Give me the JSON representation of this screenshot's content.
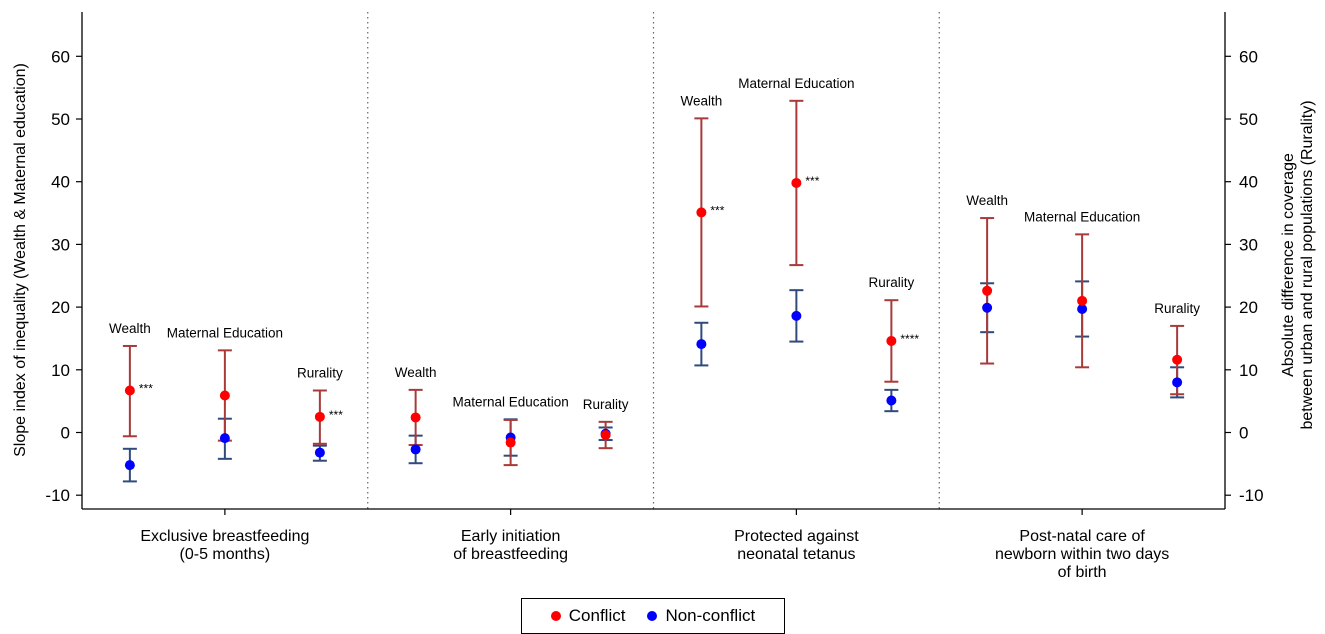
{
  "chart_data": {
    "type": "scatter",
    "y_left_label": "Slope index of inequality (Wealth & Maternal education)",
    "y_right_label_line1": "Absolute difference in coverage",
    "y_right_label_line2": "between urban and rural populations (Rurality)",
    "ylim": [
      -12,
      67
    ],
    "yticks": [
      -10,
      0,
      10,
      20,
      30,
      40,
      50,
      60
    ],
    "grid": false,
    "legend_placement": "bottom-center",
    "colors": {
      "conflict_point": "#ff0000",
      "conflict_bar": "#a83a3a",
      "nonconflict_point": "#0000ff",
      "nonconflict_bar": "#2f4b7c"
    },
    "legend": [
      {
        "key": "conflict",
        "label": "Conflict"
      },
      {
        "key": "nonconflict",
        "label": "Non-conflict"
      }
    ],
    "panels": [
      {
        "label_lines": [
          "Exclusive breastfeeding",
          "(0-5 months)"
        ],
        "groups": [
          {
            "label": "Wealth",
            "sig": "***",
            "conflict": {
              "value": 6.7,
              "low": -0.6,
              "high": 13.8
            },
            "nonconflict": {
              "value": -5.2,
              "low": -7.8,
              "high": -2.6
            }
          },
          {
            "label": "Maternal Education",
            "sig": "",
            "conflict": {
              "value": 5.9,
              "low": -1.3,
              "high": 13.1
            },
            "nonconflict": {
              "value": -0.9,
              "low": -4.2,
              "high": 2.2
            }
          },
          {
            "label": "Rurality",
            "sig": "***",
            "conflict": {
              "value": 2.5,
              "low": -1.8,
              "high": 6.7
            },
            "nonconflict": {
              "value": -3.2,
              "low": -4.5,
              "high": -2.1
            }
          }
        ]
      },
      {
        "label_lines": [
          "Early initiation",
          "of breastfeeding"
        ],
        "groups": [
          {
            "label": "Wealth",
            "sig": "",
            "conflict": {
              "value": 2.4,
              "low": -2.0,
              "high": 6.8
            },
            "nonconflict": {
              "value": -2.7,
              "low": -4.9,
              "high": -0.5
            }
          },
          {
            "label": "Maternal Education",
            "sig": "",
            "conflict": {
              "value": -1.6,
              "low": -5.2,
              "high": 2.0
            },
            "nonconflict": {
              "value": -0.8,
              "low": -3.7,
              "high": 2.1
            }
          },
          {
            "label": "Rurality",
            "sig": "",
            "conflict": {
              "value": -0.4,
              "low": -2.5,
              "high": 1.7
            },
            "nonconflict": {
              "value": -0.2,
              "low": -1.2,
              "high": 0.8
            }
          }
        ]
      },
      {
        "label_lines": [
          "Protected against",
          "neonatal tetanus"
        ],
        "groups": [
          {
            "label": "Wealth",
            "sig": "***",
            "conflict": {
              "value": 35.1,
              "low": 20.1,
              "high": 50.1
            },
            "nonconflict": {
              "value": 14.1,
              "low": 10.7,
              "high": 17.5
            }
          },
          {
            "label": "Maternal Education",
            "sig": "***",
            "conflict": {
              "value": 39.8,
              "low": 26.7,
              "high": 52.9
            },
            "nonconflict": {
              "value": 18.6,
              "low": 14.5,
              "high": 22.7
            }
          },
          {
            "label": "Rurality",
            "sig": "****",
            "conflict": {
              "value": 14.6,
              "low": 8.1,
              "high": 21.1
            },
            "nonconflict": {
              "value": 5.1,
              "low": 3.4,
              "high": 6.8
            }
          }
        ]
      },
      {
        "label_lines": [
          "Post-natal care of",
          "newborn within two days",
          "of birth"
        ],
        "groups": [
          {
            "label": "Wealth",
            "sig": "",
            "conflict": {
              "value": 22.6,
              "low": 11.0,
              "high": 34.2
            },
            "nonconflict": {
              "value": 19.9,
              "low": 16.0,
              "high": 23.8
            }
          },
          {
            "label": "Maternal Education",
            "sig": "",
            "conflict": {
              "value": 21.0,
              "low": 10.4,
              "high": 31.6
            },
            "nonconflict": {
              "value": 19.7,
              "low": 15.3,
              "high": 24.1
            }
          },
          {
            "label": "Rurality",
            "sig": "",
            "conflict": {
              "value": 11.6,
              "low": 6.1,
              "high": 17.0
            },
            "nonconflict": {
              "value": 8.0,
              "low": 5.6,
              "high": 10.4
            }
          }
        ]
      }
    ]
  }
}
